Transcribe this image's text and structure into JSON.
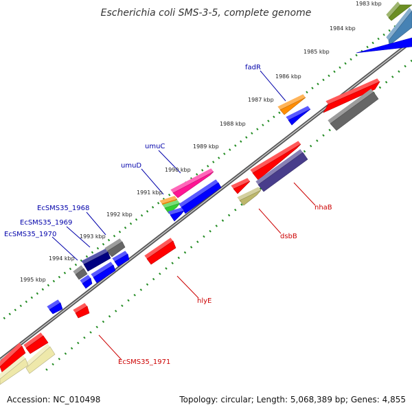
{
  "title": "Escherichia coli SMS-3-5, complete genome",
  "footer": {
    "accession": "Accession: NC_010498",
    "summary": "Topology: circular; Length: 5,068,389 bp; Genes: 4,855"
  },
  "colors": {
    "backbone": "#808080",
    "tick_dots": "#228b22",
    "label_blue": "#0000aa",
    "label_red": "#cc0000"
  },
  "ticks": [
    "1983 kbp",
    "1984 kbp",
    "1985 kbp",
    "1986 kbp",
    "1987 kbp",
    "1988 kbp",
    "1989 kbp",
    "1990 kbp",
    "1991 kbp",
    "1992 kbp",
    "1993 kbp",
    "1994 kbp",
    "1995 kbp"
  ],
  "gene_labels": [
    {
      "text": "fadR",
      "color": "blue"
    },
    {
      "text": "umuC",
      "color": "blue"
    },
    {
      "text": "umuD",
      "color": "blue"
    },
    {
      "text": "EcSMS35_1968",
      "color": "blue"
    },
    {
      "text": "EcSMS35_1969",
      "color": "blue"
    },
    {
      "text": "EcSMS35_1970",
      "color": "blue"
    },
    {
      "text": "nhaB",
      "color": "red"
    },
    {
      "text": "dsbB",
      "color": "red"
    },
    {
      "text": "hlyE",
      "color": "red"
    },
    {
      "text": "EcSMS35_1971",
      "color": "red"
    }
  ],
  "features": [
    {
      "color": "#6b8e23"
    },
    {
      "color": "#4682b4"
    },
    {
      "color": "#0000ff"
    },
    {
      "color": "#ff0000"
    },
    {
      "color": "#666666"
    },
    {
      "color": "#ff8c00"
    },
    {
      "color": "#0000ff"
    },
    {
      "color": "#ff0000"
    },
    {
      "color": "#483d8b"
    },
    {
      "color": "#ff1493"
    },
    {
      "color": "#ff8c00"
    },
    {
      "color": "#32cd32"
    },
    {
      "color": "#0000ff"
    },
    {
      "color": "#0000ff"
    },
    {
      "color": "#ff0000"
    },
    {
      "color": "#bdb76b"
    },
    {
      "color": "#666666"
    },
    {
      "color": "#000080"
    },
    {
      "color": "#0000ff"
    },
    {
      "color": "#0000ff"
    },
    {
      "color": "#666666"
    },
    {
      "color": "#0000ff"
    },
    {
      "color": "#ff0000"
    },
    {
      "color": "#0000ff"
    },
    {
      "color": "#ff0000"
    },
    {
      "color": "#ff0000"
    },
    {
      "color": "#ff0000"
    },
    {
      "color": "#eee8aa"
    },
    {
      "color": "#eee8aa"
    }
  ]
}
